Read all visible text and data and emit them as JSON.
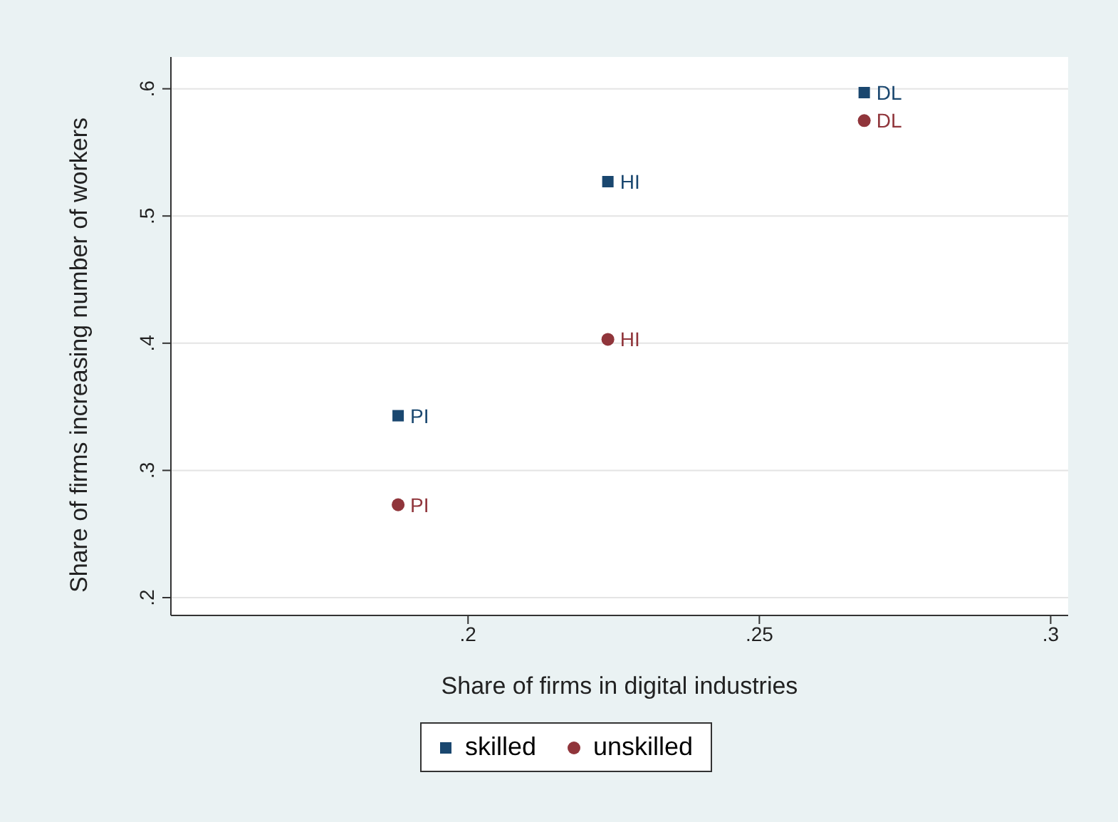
{
  "chart_data": {
    "type": "scatter",
    "xlabel": "Share of firms in digital industries",
    "ylabel": "Share of firms increasing number of workers",
    "xlim": [
      0.149,
      0.303
    ],
    "xticks": [
      {
        "value": 0.2,
        "label": ".2"
      },
      {
        "value": 0.25,
        "label": ".25"
      },
      {
        "value": 0.3,
        "label": ".3"
      }
    ],
    "ylim": [
      0.186,
      0.625
    ],
    "yticks": [
      {
        "value": 0.2,
        "label": ".2"
      },
      {
        "value": 0.3,
        "label": ".3"
      },
      {
        "value": 0.4,
        "label": ".4"
      },
      {
        "value": 0.5,
        "label": ".5"
      },
      {
        "value": 0.6,
        "label": ".6"
      }
    ],
    "grid": "y",
    "legend": "bottom",
    "series": [
      {
        "name": "skilled",
        "color": "#1a476f",
        "marker": "square",
        "x": [
          0.188,
          0.224,
          0.268
        ],
        "values": [
          0.343,
          0.527,
          0.597
        ],
        "value_labels": [
          "PI",
          "HI",
          "DL"
        ]
      },
      {
        "name": "unskilled",
        "color": "#90353b",
        "marker": "circle",
        "x": [
          0.188,
          0.224,
          0.268
        ],
        "values": [
          0.273,
          0.403,
          0.575
        ],
        "value_labels": [
          "PI",
          "HI",
          "DL"
        ]
      }
    ]
  }
}
